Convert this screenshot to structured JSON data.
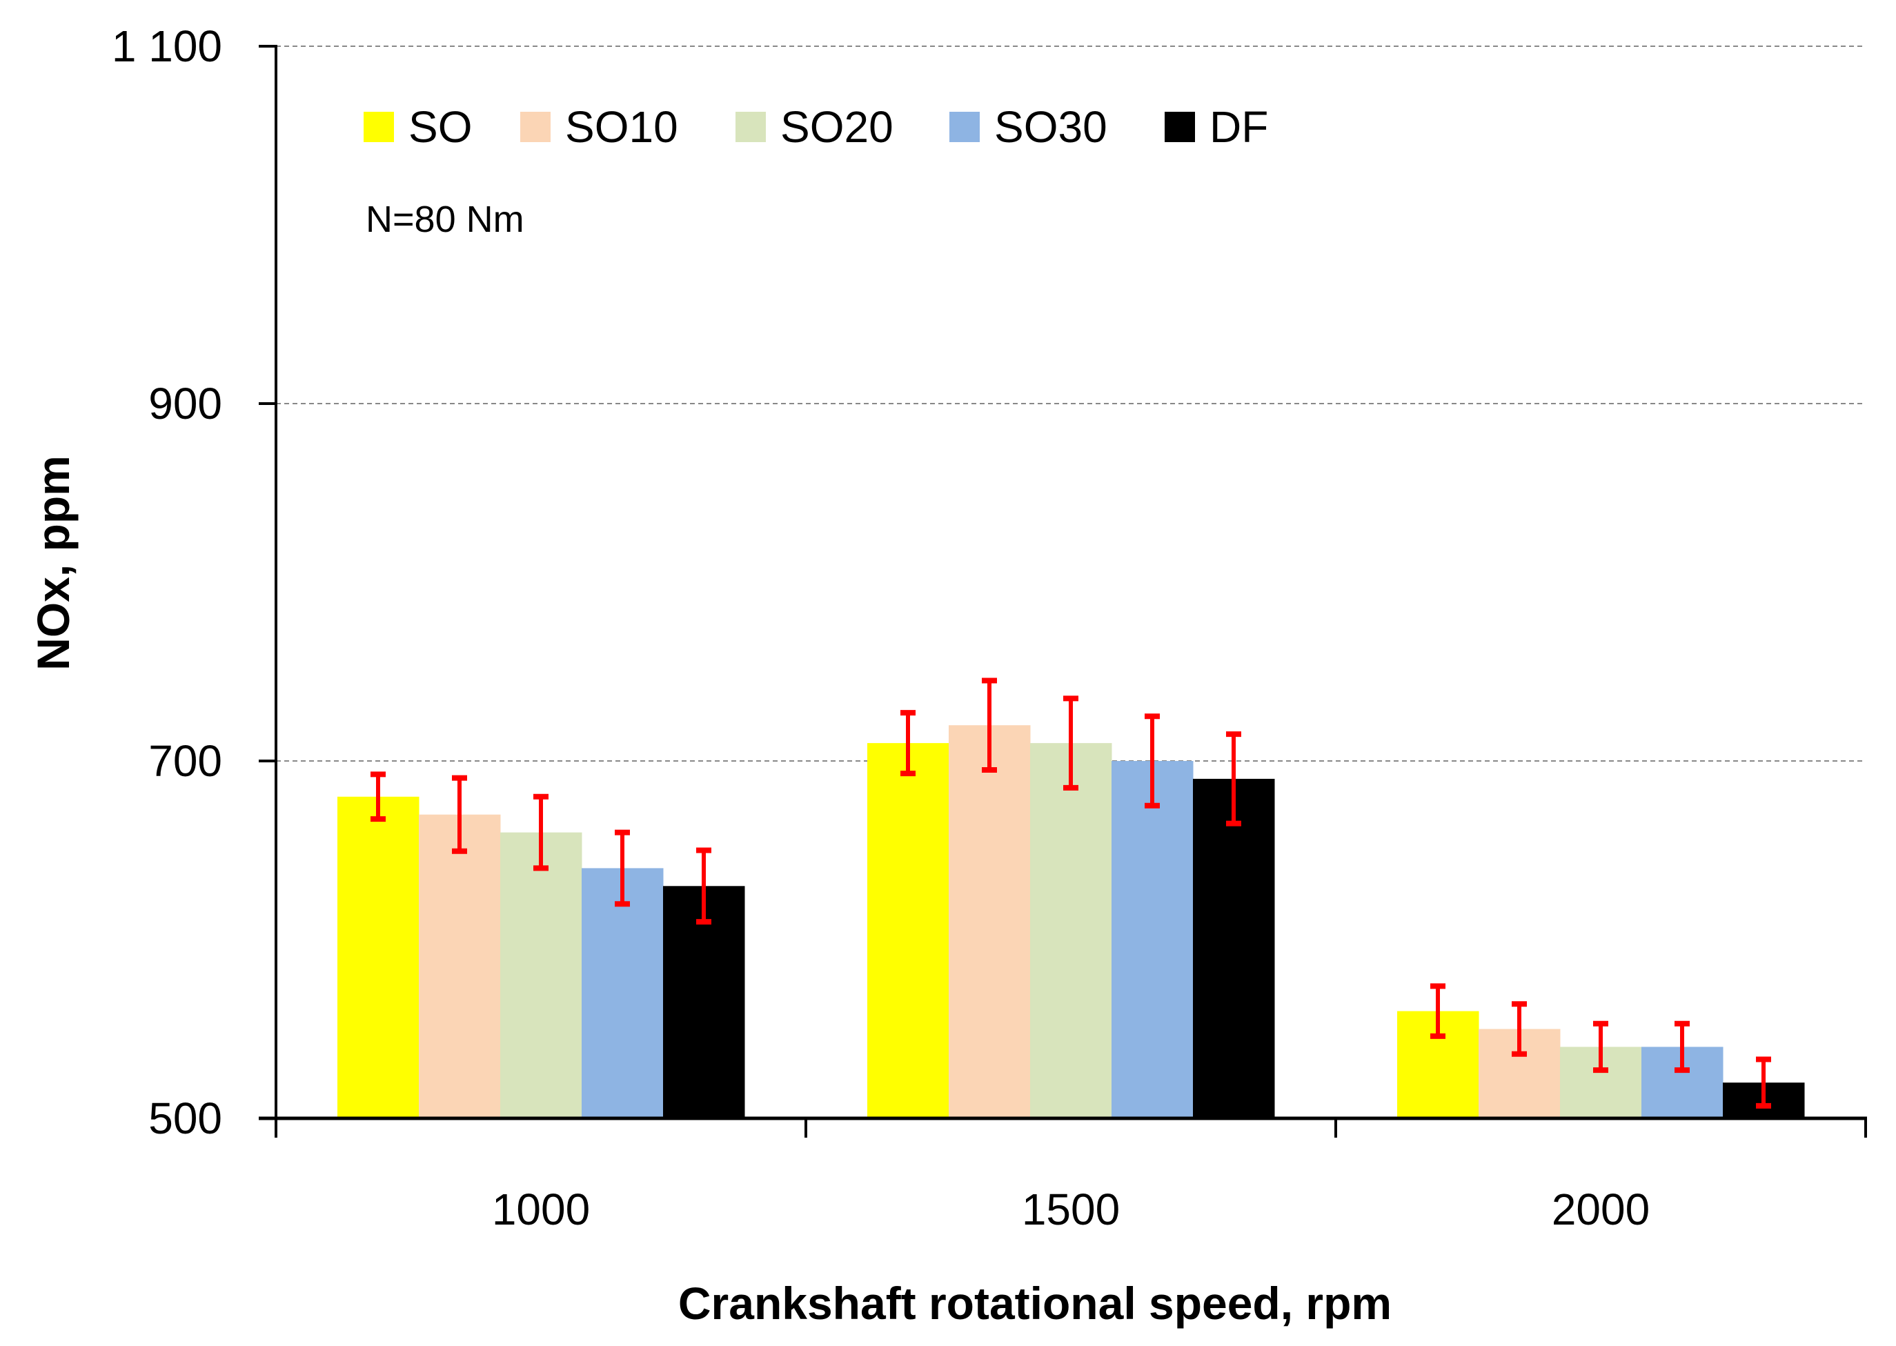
{
  "chart_data": {
    "type": "bar",
    "title": "",
    "annotation": "N=80 Nm",
    "xlabel": "Crankshaft rotational speed, rpm",
    "ylabel": "NOx, ppm",
    "ylim": [
      500,
      1100
    ],
    "yticks": [
      500,
      700,
      900,
      1100
    ],
    "ytick_labels": [
      "500",
      "700",
      "900",
      "1 100"
    ],
    "grid": "horizontal dashed",
    "legend_position": "top-left",
    "categories": [
      "1000",
      "1500",
      "2000"
    ],
    "series": [
      {
        "name": "SO",
        "color": "#ffff00",
        "values": [
          680,
          710,
          560
        ],
        "errors": [
          12.5,
          17,
          14
        ]
      },
      {
        "name": "SO10",
        "color": "#fbd5b5",
        "values": [
          670,
          720,
          550
        ],
        "errors": [
          20.5,
          25,
          14
        ]
      },
      {
        "name": "SO20",
        "color": "#d8e4bc",
        "values": [
          660,
          710,
          540
        ],
        "errors": [
          20,
          25,
          13
        ]
      },
      {
        "name": "SO30",
        "color": "#8eb4e3",
        "values": [
          640,
          700,
          540
        ],
        "errors": [
          20,
          25,
          13
        ]
      },
      {
        "name": "DF",
        "color": "#000000",
        "values": [
          630,
          690,
          520
        ],
        "errors": [
          20,
          25,
          13
        ]
      }
    ],
    "error_bar_color": "#ff0000"
  }
}
